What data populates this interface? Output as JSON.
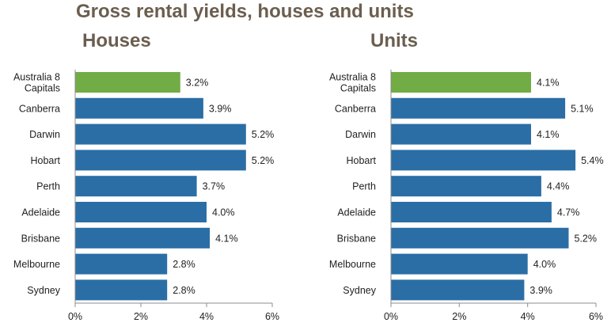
{
  "title": "Gross rental yields, houses and units",
  "chart_data": [
    {
      "type": "bar",
      "orientation": "horizontal",
      "title": "Houses",
      "categories": [
        "Australia 8 Capitals",
        "Canberra",
        "Darwin",
        "Hobart",
        "Perth",
        "Adelaide",
        "Brisbane",
        "Melbourne",
        "Sydney"
      ],
      "category_lines": [
        [
          "Australia  8",
          "Capitals"
        ],
        [
          "Canberra"
        ],
        [
          "Darwin"
        ],
        [
          "Hobart"
        ],
        [
          "Perth"
        ],
        [
          "Adelaide"
        ],
        [
          "Brisbane"
        ],
        [
          "Melbourne"
        ],
        [
          "Sydney"
        ]
      ],
      "values": [
        3.2,
        3.9,
        5.2,
        5.2,
        3.7,
        4.0,
        4.1,
        2.8,
        2.8
      ],
      "value_labels": [
        "3.2%",
        "3.9%",
        "5.2%",
        "5.2%",
        "3.7%",
        "4.0%",
        "4.1%",
        "2.8%",
        "2.8%"
      ],
      "highlight_index": 0,
      "xlim": [
        0,
        6
      ],
      "x_ticks": [
        0,
        2,
        4,
        6
      ],
      "x_tick_labels": [
        "0%",
        "2%",
        "4%",
        "6%"
      ],
      "grid": false,
      "legend": "none"
    },
    {
      "type": "bar",
      "orientation": "horizontal",
      "title": "Units",
      "categories": [
        "Australia 8 Capitals",
        "Canberra",
        "Darwin",
        "Hobart",
        "Perth",
        "Adelaide",
        "Brisbane",
        "Melbourne",
        "Sydney"
      ],
      "category_lines": [
        [
          "Australia  8",
          "Capitals"
        ],
        [
          "Canberra"
        ],
        [
          "Darwin"
        ],
        [
          "Hobart"
        ],
        [
          "Perth"
        ],
        [
          "Adelaide"
        ],
        [
          "Brisbane"
        ],
        [
          "Melbourne"
        ],
        [
          "Sydney"
        ]
      ],
      "values": [
        4.1,
        5.1,
        4.1,
        5.4,
        4.4,
        4.7,
        5.2,
        4.0,
        3.9
      ],
      "value_labels": [
        "4.1%",
        "5.1%",
        "4.1%",
        "5.4%",
        "4.4%",
        "4.7%",
        "5.2%",
        "4.0%",
        "3.9%"
      ],
      "highlight_index": 0,
      "xlim": [
        0,
        6
      ],
      "x_ticks": [
        0,
        2,
        4,
        6
      ],
      "x_tick_labels": [
        "0%",
        "2%",
        "4%",
        "6%"
      ],
      "grid": false,
      "legend": "none"
    }
  ],
  "colors": {
    "bar": "#2b6ea6",
    "highlight_bar": "#72ac45",
    "title": "#6b5e4f",
    "axis": "#8c8c8c"
  }
}
